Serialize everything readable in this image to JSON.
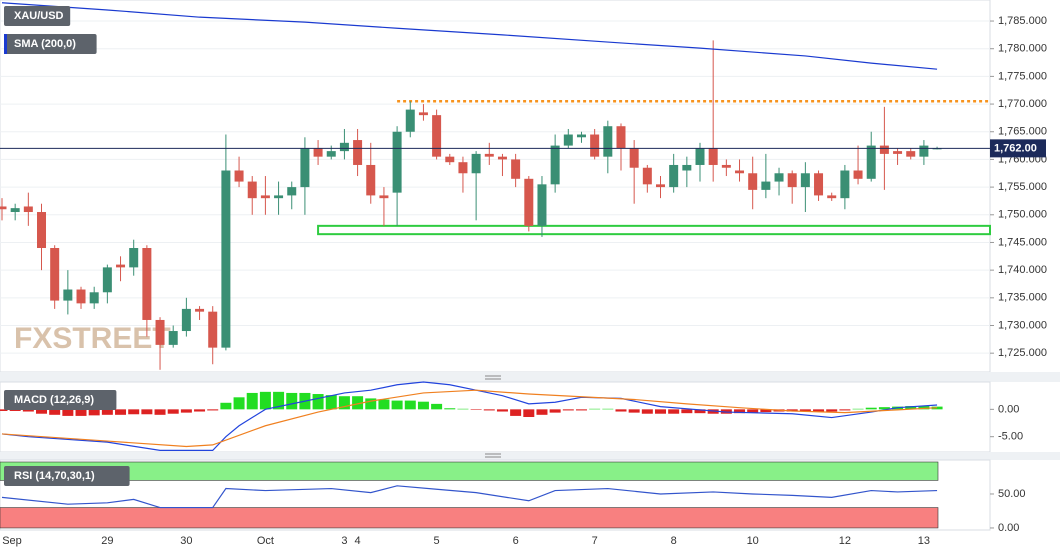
{
  "chart_data": [
    {
      "type": "candlestick",
      "title": "XAU/USD",
      "watermark": "FXSTREET",
      "categories": [
        "Sep",
        null,
        null,
        null,
        null,
        null,
        null,
        null,
        "29",
        null,
        null,
        null,
        null,
        null,
        "30",
        null,
        null,
        null,
        null,
        null,
        "Oct",
        null,
        null,
        null,
        null,
        null,
        "3",
        "4",
        null,
        null,
        null,
        null,
        null,
        "5",
        null,
        null,
        null,
        null,
        null,
        "6",
        null,
        null,
        null,
        null,
        null,
        "7",
        null,
        null,
        null,
        null,
        null,
        "8",
        null,
        null,
        null,
        null,
        null,
        "10",
        null,
        null,
        null,
        null,
        null,
        null,
        "12",
        null,
        null,
        null,
        null,
        null,
        "13",
        null
      ],
      "up_color": "#3a8f74",
      "down_color": "#d6574d",
      "series": [
        {
          "name": "XAU/USD",
          "open": [
            1751.5,
            1750.5,
            1751.5,
            1750.5,
            1744,
            1734.5,
            1736.5,
            1734,
            1736,
            1741,
            1740.5,
            1744,
            1731,
            1726.5,
            1729,
            1733,
            1732.5,
            1726,
            1758,
            1756,
            1753.5,
            1753,
            1753.5,
            1755,
            1762,
            1760.5,
            1761.5,
            1763.5,
            1759,
            1753.5,
            1754,
            1765,
            1768.5,
            1768,
            1760.5,
            1759.5,
            1757.5,
            1761,
            1760.5,
            1760,
            1756.5,
            1748,
            1755.5,
            1762.5,
            1764,
            1764.5,
            1760.5,
            1766,
            1762,
            1758.5,
            1755.5,
            1755,
            1758,
            1759,
            1762,
            1759,
            1758,
            1757.5,
            1754.5,
            1756,
            1757.5,
            1755,
            1757.5,
            1753.5,
            1753,
            1758,
            1756.5,
            1762.5,
            1761.5,
            1761.5,
            1760.5,
            1762
          ],
          "high": [
            1753,
            1752,
            1754,
            1752,
            1744.5,
            1740,
            1737,
            1737,
            1741,
            1742.5,
            1745.5,
            1744.5,
            1731.5,
            1730,
            1735,
            1733.5,
            1733.5,
            1764.5,
            1760.5,
            1757,
            1757,
            1756,
            1756,
            1764,
            1763.5,
            1762.5,
            1765.5,
            1765.5,
            1763,
            1755,
            1766,
            1770.5,
            1770,
            1769,
            1761,
            1760.5,
            1761.5,
            1763,
            1761,
            1761,
            1757,
            1757,
            1764.5,
            1765.5,
            1765,
            1765.5,
            1767,
            1766.5,
            1763.5,
            1759,
            1757,
            1761,
            1760.5,
            1763,
            1781.5,
            1760,
            1760,
            1760.5,
            1761,
            1758.5,
            1758,
            1759.5,
            1758,
            1754,
            1759,
            1762.5,
            1765,
            1769.5,
            1762,
            1762,
            1763.5,
            1762.3
          ],
          "low": [
            1749,
            1749,
            1748,
            1740,
            1733,
            1732,
            1733,
            1733,
            1734,
            1738,
            1739,
            1728,
            1722,
            1726,
            1728,
            1731,
            1723,
            1725.5,
            1755,
            1750,
            1750,
            1750,
            1751,
            1750,
            1759,
            1760,
            1760,
            1757,
            1752,
            1748,
            1748,
            1764,
            1767,
            1760,
            1759,
            1754,
            1749,
            1759,
            1757,
            1755,
            1747,
            1746,
            1754,
            1762,
            1763,
            1760,
            1757.5,
            1758,
            1752,
            1754,
            1753,
            1754,
            1755,
            1756,
            1756,
            1757,
            1756,
            1751,
            1753,
            1753.5,
            1752,
            1750.5,
            1752.5,
            1752.5,
            1751,
            1755.5,
            1756,
            1754.5,
            1759,
            1760,
            1759,
            1761.8
          ],
          "close": [
            1751,
            1751.2,
            1750.5,
            1744,
            1734.5,
            1736.5,
            1734,
            1736,
            1740.5,
            1740.5,
            1744,
            1731,
            1726.5,
            1729,
            1733,
            1732.5,
            1726,
            1758,
            1756,
            1753,
            1753,
            1753.5,
            1755,
            1762,
            1760.5,
            1761.5,
            1763,
            1759,
            1753.5,
            1753,
            1765,
            1769,
            1768,
            1760.5,
            1759.5,
            1757.5,
            1761,
            1760.5,
            1760,
            1756.5,
            1748,
            1755.5,
            1762.5,
            1764.5,
            1764.5,
            1760.5,
            1766,
            1762,
            1758.5,
            1755.5,
            1755,
            1759,
            1759,
            1762,
            1759,
            1758.5,
            1757.5,
            1754.5,
            1756,
            1757.5,
            1755,
            1757.5,
            1753.5,
            1753,
            1758,
            1756.5,
            1762.5,
            1761,
            1761,
            1760.5,
            1762.5,
            1762
          ]
        }
      ],
      "sma": {
        "name": "SMA (200,0)",
        "color": "#1a3ad0",
        "x": [
          0,
          8,
          15,
          23,
          30,
          38,
          46,
          53,
          61,
          66,
          71
        ],
        "values": [
          1788.3,
          1787,
          1785.7,
          1784.8,
          1783.7,
          1782.5,
          1781.2,
          1780.1,
          1778.7,
          1777.4,
          1776.3
        ]
      },
      "resistance": {
        "value": 1770.5,
        "color": "#f7931e",
        "from_x": 30
      },
      "support_zone": {
        "from": 1746.5,
        "to": 1748,
        "color": "#2ecc40",
        "from_x": 24
      },
      "last_price": {
        "value": 1762,
        "label": "1,762.00",
        "color": "#1c2a5a"
      },
      "ylim": [
        1721.6,
        1788.8
      ],
      "yticks": [
        {
          "value": 1725,
          "label": "1,725.000"
        },
        {
          "value": 1730,
          "label": "1,730.000"
        },
        {
          "value": 1735,
          "label": "1,735.000"
        },
        {
          "value": 1740,
          "label": "1,740.000"
        },
        {
          "value": 1745,
          "label": "1,745.000"
        },
        {
          "value": 1750,
          "label": "1,750.000"
        },
        {
          "value": 1755,
          "label": "1,755.000"
        },
        {
          "value": 1760,
          "label": "1,760.000"
        },
        {
          "value": 1765,
          "label": "1,765.000"
        },
        {
          "value": 1770,
          "label": "1,770.000"
        },
        {
          "value": 1775,
          "label": "1,775.000"
        },
        {
          "value": 1780,
          "label": "1,780.000"
        },
        {
          "value": 1785,
          "label": "1,785.000"
        }
      ],
      "grid": true
    },
    {
      "type": "macd",
      "title": "MACD (12,26,9)",
      "pos_color": "#22dd22",
      "neg_color": "#dd2222",
      "histogram": [
        -0.3,
        -0.3,
        -0.4,
        -0.8,
        -1.0,
        -1.2,
        -1.2,
        -1.1,
        -1.0,
        -1.0,
        -0.9,
        -0.9,
        -1.0,
        -0.8,
        -0.6,
        -0.4,
        -0.2,
        1.2,
        2.2,
        3.0,
        3.2,
        3.2,
        3.0,
        3.0,
        2.8,
        2.6,
        2.4,
        2.4,
        2.0,
        1.8,
        1.6,
        1.6,
        1.4,
        1.0,
        0.2,
        0.1,
        -0.1,
        -0.2,
        -0.4,
        -1.2,
        -1.4,
        -1.0,
        -0.6,
        -0.2,
        -0.2,
        0.1,
        0.1,
        -0.4,
        -0.6,
        -0.8,
        -0.8,
        -0.8,
        -0.7,
        -0.7,
        -0.8,
        -0.8,
        -0.7,
        -0.6,
        -0.5,
        -0.4,
        -0.4,
        -0.4,
        -0.4,
        -0.4,
        -0.2,
        0.1,
        0.3,
        0.4,
        0.5,
        0.6,
        0.6,
        0.5
      ],
      "series": [
        {
          "color": "#2244dd",
          "x": [
            0,
            2,
            8,
            12,
            16,
            17,
            18,
            19,
            20,
            22,
            24,
            26,
            28,
            30,
            32,
            34,
            36,
            38,
            40,
            42,
            44,
            47,
            50,
            55,
            60,
            63,
            66,
            68,
            71
          ],
          "values": [
            -4.5,
            -5,
            -6,
            -7.5,
            -7.5,
            -5,
            -3,
            -1.5,
            0,
            1,
            2,
            3,
            3.5,
            4.5,
            5,
            4.5,
            3.5,
            2.5,
            1,
            1.3,
            2.2,
            2,
            0.5,
            -0.5,
            -0.8,
            -1.5,
            -0.5,
            0.3,
            0.8
          ]
        },
        {
          "color": "#f08020",
          "x": [
            0,
            8,
            14,
            16,
            20,
            24,
            28,
            32,
            36,
            40,
            44,
            48,
            52,
            56,
            60,
            64,
            68,
            71
          ],
          "values": [
            -4.5,
            -5.8,
            -6.8,
            -6.5,
            -3,
            -0.5,
            1.5,
            3,
            3.5,
            2.8,
            2.3,
            1.8,
            1,
            0.3,
            -0.3,
            -0.6,
            -0.1,
            0.3
          ]
        }
      ],
      "ylim": [
        -7.8,
        5
      ],
      "yticks": [
        {
          "value": 0,
          "label": "0.00"
        },
        {
          "value": -5,
          "label": "-5.00"
        }
      ]
    },
    {
      "type": "rsi",
      "title": "RSI (14,70,30,1)",
      "overbought": 70,
      "oversold": 30,
      "over_color": "#88f088",
      "under_color": "#f88080",
      "series": [
        {
          "color": "#3355cc",
          "x": [
            0,
            5,
            8,
            10,
            12,
            16,
            17,
            20,
            25,
            28,
            30,
            33,
            36,
            40,
            42,
            46,
            50,
            54,
            57,
            60,
            63,
            66,
            68,
            71
          ],
          "values": [
            45,
            35,
            37,
            42,
            30,
            30,
            58,
            55,
            58,
            52,
            62,
            57,
            52,
            40,
            55,
            58,
            50,
            53,
            50,
            48,
            45,
            55,
            53,
            55
          ]
        }
      ],
      "ylim": [
        -3,
        100
      ],
      "yticks": [
        {
          "value": 50,
          "label": "50.00"
        },
        {
          "value": 0,
          "label": "0.00"
        }
      ]
    }
  ]
}
